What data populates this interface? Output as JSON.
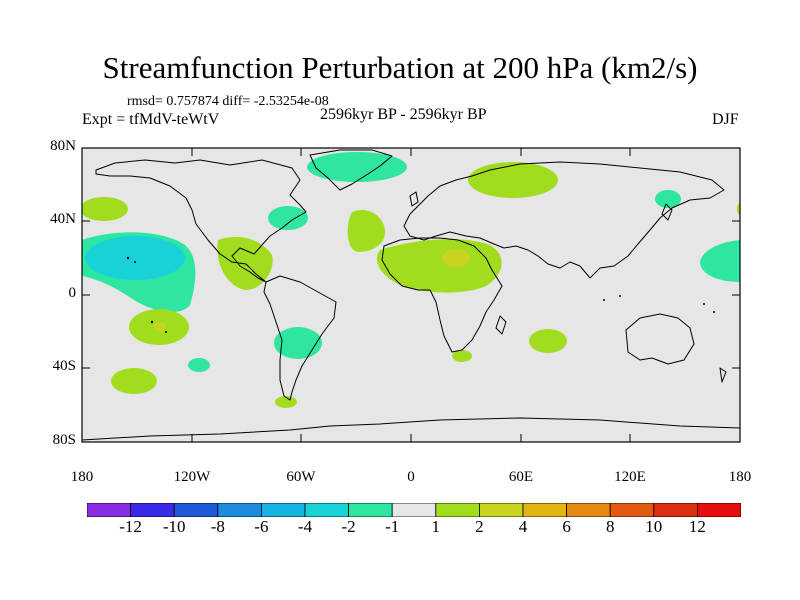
{
  "title": "Streamfunction Perturbation at 200 hPa (km2/s)",
  "stats": "rmsd= 0.757874 diff= -2.53254e-08",
  "period": "2596kyr BP - 2596kyr BP",
  "experiment": "Expt = tfMdV-teWtV",
  "season": "DJF",
  "axes": {
    "y_ticks": [
      "80N",
      "40N",
      "0",
      "40S",
      "80S"
    ],
    "x_ticks": [
      "180",
      "120W",
      "60W",
      "0",
      "60E",
      "120E",
      "180"
    ]
  },
  "colorbar": {
    "labels": [
      "-12",
      "-10",
      "-8",
      "-6",
      "-4",
      "-2",
      "-1",
      "1",
      "2",
      "4",
      "6",
      "8",
      "10",
      "12"
    ],
    "colors": [
      "#8a2be2",
      "#3a2be8",
      "#1e5ad8",
      "#1e8ae0",
      "#18b2e0",
      "#18d2d8",
      "#2ee6a0",
      "#e6e6e6",
      "#a2dc1e",
      "#c8d41e",
      "#e2b414",
      "#e48a10",
      "#e25a10",
      "#de2e10",
      "#e60e0e"
    ]
  },
  "map_colors": {
    "background": "#e6e6e6",
    "positive_1_2": "#a2dc1e",
    "positive_2_4": "#c8d41e",
    "negative_1_2": "#2ee6a0",
    "negative_2_4": "#18d2d8"
  }
}
